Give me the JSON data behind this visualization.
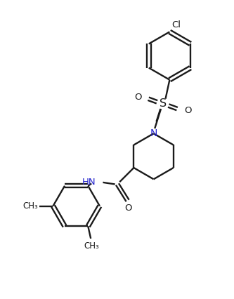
{
  "bg_color": "#ffffff",
  "line_color": "#1a1a1a",
  "n_color": "#2222cc",
  "bond_lw": 1.7,
  "fig_width": 3.33,
  "fig_height": 4.26,
  "dpi": 100,
  "xlim": [
    0,
    10
  ],
  "ylim": [
    0,
    13
  ]
}
